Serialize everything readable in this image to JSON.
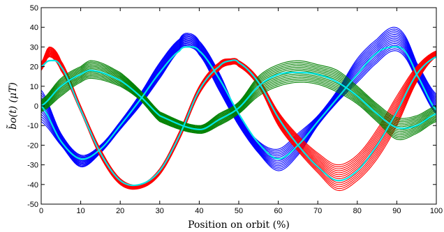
{
  "chart_data": {
    "type": "line",
    "xlabel": "Position on orbit (%)",
    "ylabel": "b̃o(t)   (μT)",
    "xlim": [
      0,
      100
    ],
    "ylim": [
      -50,
      50
    ],
    "xticks": [
      0,
      10,
      20,
      30,
      40,
      50,
      60,
      70,
      80,
      90,
      100
    ],
    "yticks": [
      -50,
      -40,
      -30,
      -20,
      -10,
      0,
      10,
      20,
      30,
      40,
      50
    ],
    "grid": false,
    "colors": {
      "blue": "#0000ff",
      "red": "#ff0000",
      "green": "#008000",
      "cyan": "#00e5e5"
    },
    "series": [
      {
        "color_key": "blue",
        "band": true,
        "x": [
          0,
          5,
          10,
          15,
          20,
          25,
          30,
          35,
          37,
          40,
          45,
          50,
          55,
          60,
          65,
          70,
          75,
          80,
          85,
          89,
          92,
          95,
          100
        ],
        "lower": [
          -8,
          -20,
          -31,
          -24,
          -12,
          0,
          14,
          28,
          30,
          26,
          8,
          -10,
          -24,
          -33,
          -25,
          -10,
          2,
          12,
          22,
          28,
          25,
          13,
          -4
        ],
        "upper": [
          8,
          -14,
          -25,
          -20,
          -8,
          6,
          22,
          34,
          37,
          33,
          17,
          -5,
          -18,
          -22,
          -14,
          -5,
          8,
          24,
          34,
          40,
          36,
          22,
          6
        ]
      },
      {
        "color_key": "red",
        "band": true,
        "x": [
          0,
          2,
          5,
          10,
          15,
          20,
          25,
          30,
          35,
          40,
          45,
          48,
          50,
          55,
          60,
          65,
          70,
          75,
          80,
          85,
          90,
          95,
          100
        ],
        "lower": [
          18,
          25,
          18,
          -3,
          -26,
          -40,
          -42,
          -35,
          -17,
          6,
          18,
          21,
          20,
          10,
          -10,
          -23,
          -34,
          -43,
          -38,
          -27,
          -10,
          12,
          25
        ],
        "upper": [
          22,
          30,
          23,
          0,
          -22,
          -37,
          -40,
          -32,
          -13,
          10,
          22,
          24,
          23,
          14,
          -3,
          -15,
          -24,
          -30,
          -25,
          -12,
          5,
          20,
          28
        ]
      },
      {
        "color_key": "green",
        "band": true,
        "x": [
          0,
          5,
          10,
          13,
          20,
          25,
          30,
          40,
          45,
          50,
          55,
          60,
          65,
          70,
          75,
          80,
          85,
          90,
          95,
          100
        ],
        "lower": [
          -3,
          5,
          12,
          14,
          10,
          3,
          -8,
          -14,
          -10,
          -4,
          5,
          10,
          12,
          11,
          7,
          1,
          -8,
          -17,
          -14,
          -8
        ],
        "upper": [
          3,
          14,
          20,
          23,
          17,
          8,
          -3,
          -10,
          -4,
          2,
          15,
          21,
          23,
          21,
          18,
          10,
          1,
          -6,
          -5,
          0
        ]
      },
      {
        "color_key": "cyan",
        "band": false,
        "x": [
          0,
          5,
          10,
          15,
          20,
          25,
          30,
          35,
          37,
          40,
          45,
          50,
          55,
          60,
          65,
          70,
          75,
          80,
          85,
          89,
          92,
          95,
          100
        ],
        "y": [
          0,
          -18,
          -27,
          -22,
          -10,
          3,
          17,
          28,
          30,
          28,
          14,
          -4,
          -19,
          -27,
          -20,
          -8,
          4,
          16,
          27,
          30,
          28,
          16,
          -2
        ]
      },
      {
        "color_key": "cyan",
        "band": false,
        "x": [
          0,
          2,
          5,
          10,
          15,
          20,
          25,
          30,
          35,
          40,
          45,
          48,
          50,
          55,
          60,
          65,
          70,
          75,
          80,
          85,
          90,
          95,
          100
        ],
        "y": [
          20,
          23,
          20,
          -2,
          -24,
          -38,
          -40,
          -33,
          -15,
          8,
          20,
          23,
          22,
          12,
          -6,
          -20,
          -31,
          -38,
          -33,
          -20,
          -3,
          16,
          25
        ]
      },
      {
        "color_key": "cyan",
        "band": false,
        "x": [
          0,
          5,
          10,
          13,
          20,
          25,
          30,
          40,
          45,
          50,
          55,
          60,
          65,
          70,
          75,
          80,
          85,
          90,
          95,
          100
        ],
        "y": [
          0,
          10,
          16,
          18,
          13,
          5,
          -5,
          -12,
          -7,
          -1,
          10,
          16,
          17,
          16,
          12,
          5,
          -4,
          -11,
          -10,
          -4
        ]
      }
    ]
  }
}
